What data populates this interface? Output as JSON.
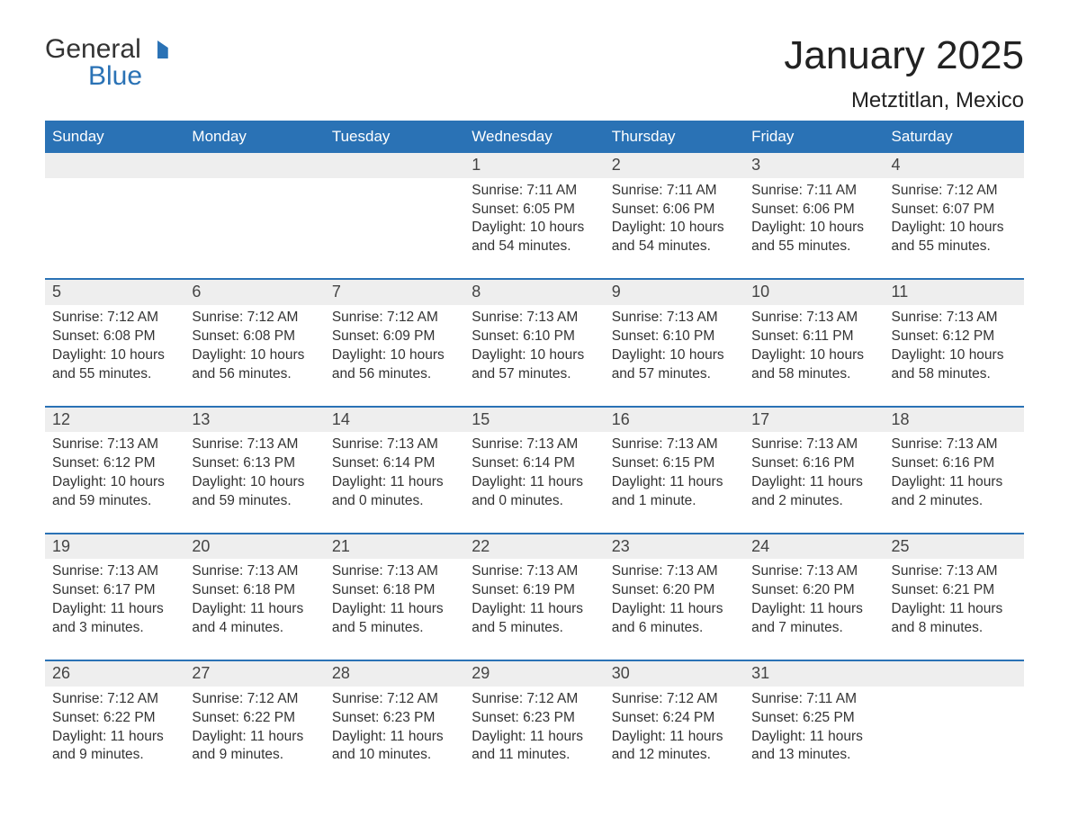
{
  "brand": {
    "word1": "General",
    "word2": "Blue",
    "logo_color": "#2a72b5"
  },
  "title": "January 2025",
  "location": "Metztitlan, Mexico",
  "theme": {
    "header_bg": "#2a72b5",
    "header_text": "#ffffff",
    "daynum_bg": "#eeeeee",
    "rule_color": "#2a72b5",
    "body_text": "#333333",
    "page_bg": "#ffffff",
    "title_fontsize": 44,
    "location_fontsize": 24,
    "dayhead_fontsize": 17,
    "cell_fontsize": 15.5
  },
  "days_of_week": [
    "Sunday",
    "Monday",
    "Tuesday",
    "Wednesday",
    "Thursday",
    "Friday",
    "Saturday"
  ],
  "weeks": [
    [
      {
        "n": null
      },
      {
        "n": null
      },
      {
        "n": null
      },
      {
        "n": 1,
        "sunrise": "7:11 AM",
        "sunset": "6:05 PM",
        "daylight": "10 hours and 54 minutes."
      },
      {
        "n": 2,
        "sunrise": "7:11 AM",
        "sunset": "6:06 PM",
        "daylight": "10 hours and 54 minutes."
      },
      {
        "n": 3,
        "sunrise": "7:11 AM",
        "sunset": "6:06 PM",
        "daylight": "10 hours and 55 minutes."
      },
      {
        "n": 4,
        "sunrise": "7:12 AM",
        "sunset": "6:07 PM",
        "daylight": "10 hours and 55 minutes."
      }
    ],
    [
      {
        "n": 5,
        "sunrise": "7:12 AM",
        "sunset": "6:08 PM",
        "daylight": "10 hours and 55 minutes."
      },
      {
        "n": 6,
        "sunrise": "7:12 AM",
        "sunset": "6:08 PM",
        "daylight": "10 hours and 56 minutes."
      },
      {
        "n": 7,
        "sunrise": "7:12 AM",
        "sunset": "6:09 PM",
        "daylight": "10 hours and 56 minutes."
      },
      {
        "n": 8,
        "sunrise": "7:13 AM",
        "sunset": "6:10 PM",
        "daylight": "10 hours and 57 minutes."
      },
      {
        "n": 9,
        "sunrise": "7:13 AM",
        "sunset": "6:10 PM",
        "daylight": "10 hours and 57 minutes."
      },
      {
        "n": 10,
        "sunrise": "7:13 AM",
        "sunset": "6:11 PM",
        "daylight": "10 hours and 58 minutes."
      },
      {
        "n": 11,
        "sunrise": "7:13 AM",
        "sunset": "6:12 PM",
        "daylight": "10 hours and 58 minutes."
      }
    ],
    [
      {
        "n": 12,
        "sunrise": "7:13 AM",
        "sunset": "6:12 PM",
        "daylight": "10 hours and 59 minutes."
      },
      {
        "n": 13,
        "sunrise": "7:13 AM",
        "sunset": "6:13 PM",
        "daylight": "10 hours and 59 minutes."
      },
      {
        "n": 14,
        "sunrise": "7:13 AM",
        "sunset": "6:14 PM",
        "daylight": "11 hours and 0 minutes."
      },
      {
        "n": 15,
        "sunrise": "7:13 AM",
        "sunset": "6:14 PM",
        "daylight": "11 hours and 0 minutes."
      },
      {
        "n": 16,
        "sunrise": "7:13 AM",
        "sunset": "6:15 PM",
        "daylight": "11 hours and 1 minute."
      },
      {
        "n": 17,
        "sunrise": "7:13 AM",
        "sunset": "6:16 PM",
        "daylight": "11 hours and 2 minutes."
      },
      {
        "n": 18,
        "sunrise": "7:13 AM",
        "sunset": "6:16 PM",
        "daylight": "11 hours and 2 minutes."
      }
    ],
    [
      {
        "n": 19,
        "sunrise": "7:13 AM",
        "sunset": "6:17 PM",
        "daylight": "11 hours and 3 minutes."
      },
      {
        "n": 20,
        "sunrise": "7:13 AM",
        "sunset": "6:18 PM",
        "daylight": "11 hours and 4 minutes."
      },
      {
        "n": 21,
        "sunrise": "7:13 AM",
        "sunset": "6:18 PM",
        "daylight": "11 hours and 5 minutes."
      },
      {
        "n": 22,
        "sunrise": "7:13 AM",
        "sunset": "6:19 PM",
        "daylight": "11 hours and 5 minutes."
      },
      {
        "n": 23,
        "sunrise": "7:13 AM",
        "sunset": "6:20 PM",
        "daylight": "11 hours and 6 minutes."
      },
      {
        "n": 24,
        "sunrise": "7:13 AM",
        "sunset": "6:20 PM",
        "daylight": "11 hours and 7 minutes."
      },
      {
        "n": 25,
        "sunrise": "7:13 AM",
        "sunset": "6:21 PM",
        "daylight": "11 hours and 8 minutes."
      }
    ],
    [
      {
        "n": 26,
        "sunrise": "7:12 AM",
        "sunset": "6:22 PM",
        "daylight": "11 hours and 9 minutes."
      },
      {
        "n": 27,
        "sunrise": "7:12 AM",
        "sunset": "6:22 PM",
        "daylight": "11 hours and 9 minutes."
      },
      {
        "n": 28,
        "sunrise": "7:12 AM",
        "sunset": "6:23 PM",
        "daylight": "11 hours and 10 minutes."
      },
      {
        "n": 29,
        "sunrise": "7:12 AM",
        "sunset": "6:23 PM",
        "daylight": "11 hours and 11 minutes."
      },
      {
        "n": 30,
        "sunrise": "7:12 AM",
        "sunset": "6:24 PM",
        "daylight": "11 hours and 12 minutes."
      },
      {
        "n": 31,
        "sunrise": "7:11 AM",
        "sunset": "6:25 PM",
        "daylight": "11 hours and 13 minutes."
      },
      {
        "n": null
      }
    ]
  ],
  "labels": {
    "sunrise": "Sunrise: ",
    "sunset": "Sunset: ",
    "daylight": "Daylight: "
  }
}
